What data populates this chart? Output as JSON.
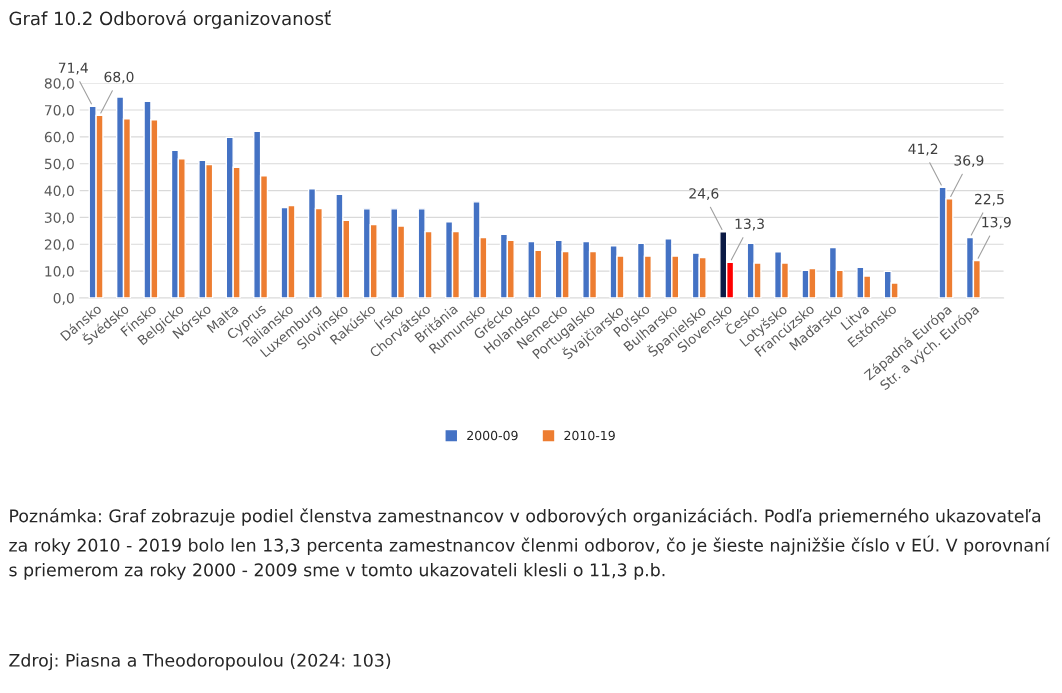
{
  "chart_data": {
    "type": "bar",
    "title": "Graf 10.2 Odborová organizovanosť",
    "categories": [
      "Dánsko",
      "Švédsko",
      "Fínsko",
      "Belgicko",
      "Nórsko",
      "Malta",
      "Cyprus",
      "Taliansko",
      "Luxemburg",
      "Slovinsko",
      "Rakúsko",
      "Írsko",
      "Chorvátsko",
      "Británia",
      "Rumunsko",
      "Grécko",
      "Holandsko",
      "Nemecko",
      "Portugalsko",
      "Švajčiarsko",
      "Poľsko",
      "Bulharsko",
      "Španielsko",
      "Slovensko",
      "Česko",
      "Lotyšsko",
      "Francúzsko",
      "Maďarsko",
      "Litva",
      "Estónsko",
      null,
      "Západná Európa",
      "Str. a vých. Európa"
    ],
    "series": [
      {
        "name": "2000-09",
        "color": "#4472c4",
        "colors": [
          "#4472c4",
          "#4472c4",
          "#4472c4",
          "#4472c4",
          "#4472c4",
          "#4472c4",
          "#4472c4",
          "#4472c4",
          "#4472c4",
          "#4472c4",
          "#4472c4",
          "#4472c4",
          "#4472c4",
          "#4472c4",
          "#4472c4",
          "#4472c4",
          "#4472c4",
          "#4472c4",
          "#4472c4",
          "#4472c4",
          "#4472c4",
          "#4472c4",
          "#4472c4",
          "#0b1a45",
          "#4472c4",
          "#4472c4",
          "#4472c4",
          "#4472c4",
          "#4472c4",
          "#4472c4",
          "#4472c4",
          "#4472c4",
          "#4472c4"
        ],
        "values": [
          71.4,
          74.8,
          73.2,
          55.0,
          51.3,
          59.8,
          62.1,
          33.7,
          40.7,
          38.6,
          33.2,
          33.2,
          33.2,
          28.4,
          35.8,
          23.7,
          21.0,
          21.5,
          21.0,
          19.4,
          20.4,
          22.0,
          16.7,
          24.6,
          20.4,
          17.2,
          10.3,
          18.8,
          11.4,
          9.9,
          null,
          41.2,
          22.5
        ],
        "value_labels": [
          "71,4",
          null,
          null,
          null,
          null,
          null,
          null,
          null,
          null,
          null,
          null,
          null,
          null,
          null,
          null,
          null,
          null,
          null,
          null,
          null,
          null,
          null,
          null,
          "24,6",
          null,
          null,
          null,
          null,
          null,
          null,
          null,
          "41,2",
          "22,5"
        ]
      },
      {
        "name": "2010-19",
        "color": "#ed7d31",
        "colors": [
          "#ed7d31",
          "#ed7d31",
          "#ed7d31",
          "#ed7d31",
          "#ed7d31",
          "#ed7d31",
          "#ed7d31",
          "#ed7d31",
          "#ed7d31",
          "#ed7d31",
          "#ed7d31",
          "#ed7d31",
          "#ed7d31",
          "#ed7d31",
          "#ed7d31",
          "#ed7d31",
          "#ed7d31",
          "#ed7d31",
          "#ed7d31",
          "#ed7d31",
          "#ed7d31",
          "#ed7d31",
          "#ed7d31",
          "#ff0000",
          "#ed7d31",
          "#ed7d31",
          "#ed7d31",
          "#ed7d31",
          "#ed7d31",
          "#ed7d31",
          "#ed7d31",
          "#ed7d31",
          "#ed7d31"
        ],
        "values": [
          68.0,
          66.7,
          66.4,
          51.8,
          49.7,
          48.7,
          45.5,
          34.4,
          33.3,
          28.9,
          27.3,
          26.8,
          24.7,
          24.7,
          22.5,
          21.5,
          17.8,
          17.3,
          17.3,
          15.6,
          15.6,
          15.6,
          15.1,
          13.3,
          13.0,
          13.0,
          11.0,
          10.3,
          8.2,
          5.6,
          null,
          36.9,
          13.9
        ],
        "value_labels": [
          "68,0",
          null,
          null,
          null,
          null,
          null,
          null,
          null,
          null,
          null,
          null,
          null,
          null,
          null,
          null,
          null,
          null,
          null,
          null,
          null,
          null,
          null,
          null,
          "13,3",
          null,
          null,
          null,
          null,
          null,
          null,
          null,
          "36,9",
          "13,9"
        ]
      }
    ],
    "ylim": [
      0,
      80
    ],
    "yticks": [
      {
        "value": 0,
        "label": "0,0"
      },
      {
        "value": 10,
        "label": "10,0"
      },
      {
        "value": 20,
        "label": "20,0"
      },
      {
        "value": 30,
        "label": "30,0"
      },
      {
        "value": 40,
        "label": "40,0"
      },
      {
        "value": 50,
        "label": "50,0"
      },
      {
        "value": 60,
        "label": "60,0"
      },
      {
        "value": 70,
        "label": "70,0"
      },
      {
        "value": 80,
        "label": "80,0"
      }
    ],
    "grid": "y",
    "legend": "bottom",
    "annotations": [
      "Poznámka: Graf zobrazuje podiel členstva zamestnancov v odborových organizáciách. Podľa priemerného ukazovateľa za roky 2010 - 2019 bolo len 13,3 percenta zamestnancov členmi odborov, čo je šieste najnižšie číslo v EÚ. V porovnaní s priemerom za roky 2000 - 2009 sme v tomto ukazovateli klesli o 11,3 p.b.",
      "Zdroj: Piasna a Theodoropoulou (2024: 103)"
    ]
  }
}
